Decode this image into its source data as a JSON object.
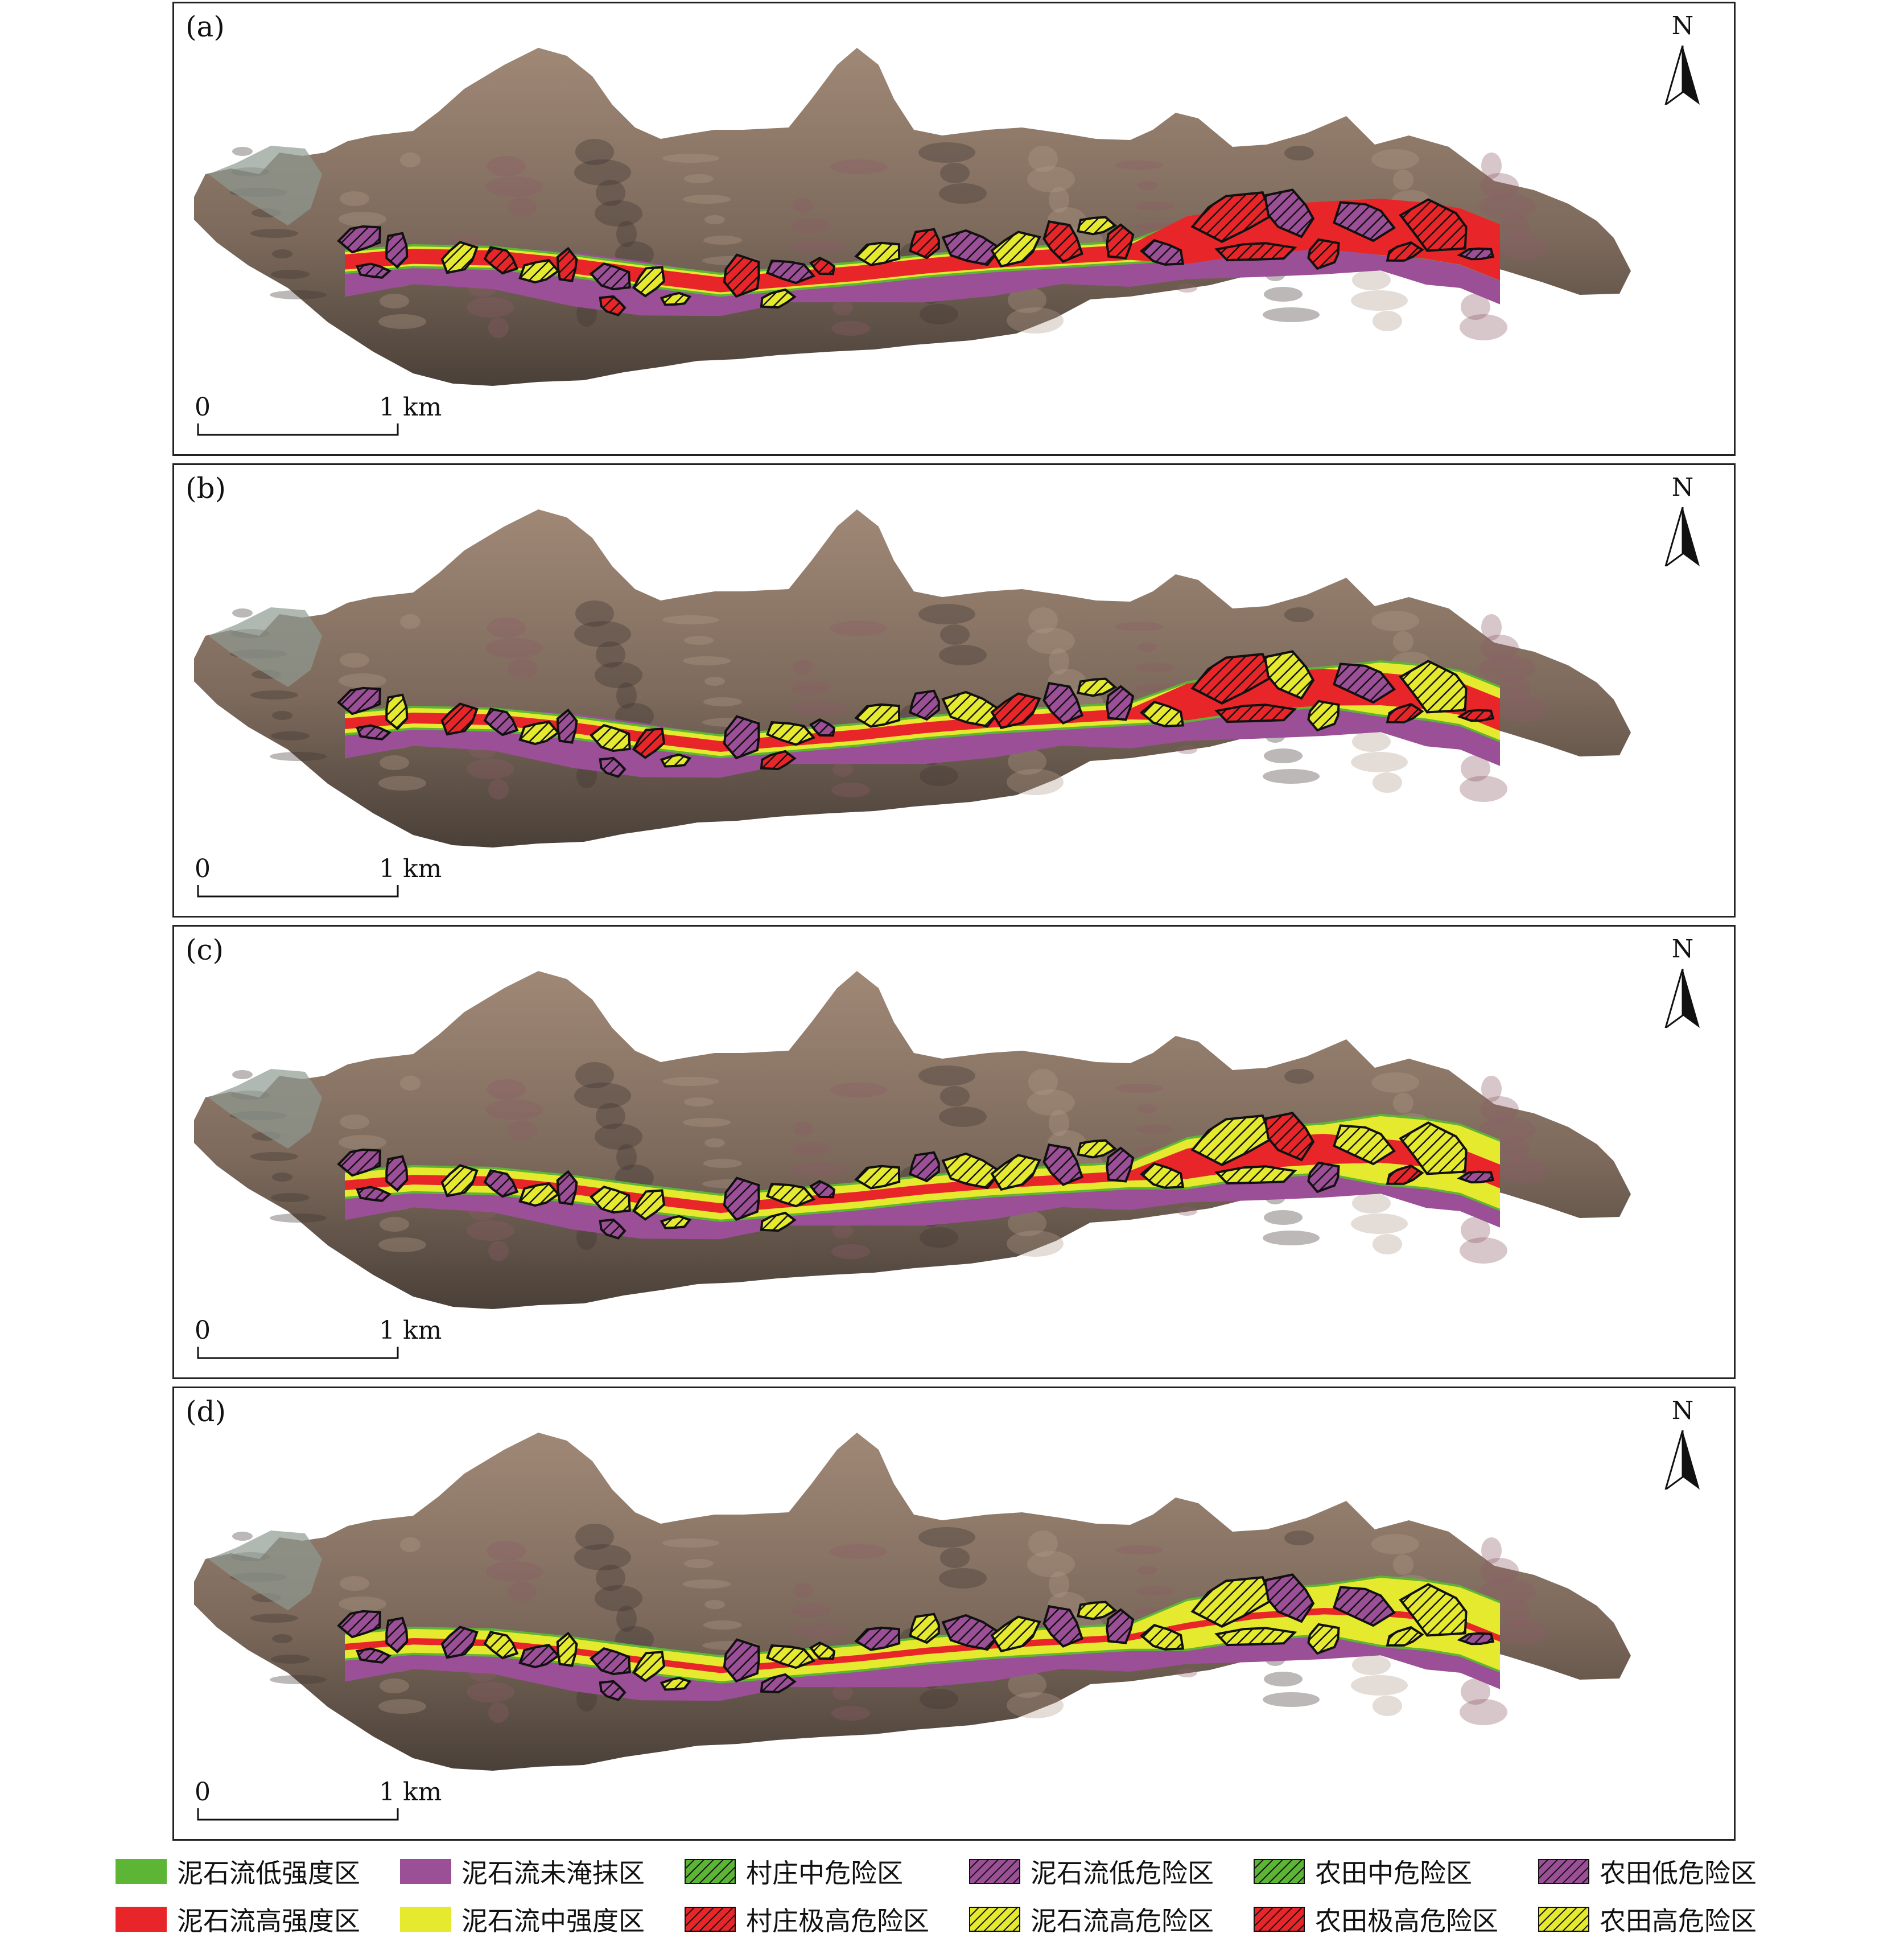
{
  "panels": [
    {
      "label": "(a)",
      "mode": "a"
    },
    {
      "label": "(b)",
      "mode": "b"
    },
    {
      "label": "(c)",
      "mode": "c"
    },
    {
      "label": "(d)",
      "mode": "d"
    }
  ],
  "north_label": "N",
  "scale": {
    "start": "0",
    "end": "1 km"
  },
  "colors": {
    "low_intensity": "#5DB536",
    "high_intensity": "#E8262A",
    "not_inundated": "#9B4F96",
    "medium_intensity": "#E6EA2E",
    "terrain_dark": "#4a4038",
    "terrain_mid": "#7d6a5c",
    "terrain_light": "#a08876"
  },
  "legend": [
    {
      "label": "泥石流低强度区",
      "swatch": "solid",
      "color": "#5DB536",
      "icon": "solid-green-swatch"
    },
    {
      "label": "泥石流未淹抹区",
      "swatch": "solid",
      "color": "#9B4F96",
      "icon": "solid-purple-swatch"
    },
    {
      "label": "村庄中危险区",
      "swatch": "hatch",
      "color": "#5DB536",
      "icon": "hatched-green-swatch"
    },
    {
      "label": "泥石流低危险区",
      "swatch": "hatch",
      "color": "#9B4F96",
      "icon": "hatched-purple-swatch"
    },
    {
      "label": "农田中危险区",
      "swatch": "hatch",
      "color": "#5DB536",
      "icon": "hatched-green-swatch"
    },
    {
      "label": "农田低危险区",
      "swatch": "hatch",
      "color": "#9B4F96",
      "icon": "hatched-purple-swatch"
    },
    {
      "label": "泥石流高强度区",
      "swatch": "solid",
      "color": "#E8262A",
      "icon": "solid-red-swatch"
    },
    {
      "label": "泥石流中强度区",
      "swatch": "solid",
      "color": "#E6EA2E",
      "icon": "solid-yellow-swatch"
    },
    {
      "label": "村庄极高危险区",
      "swatch": "hatch",
      "color": "#E8262A",
      "icon": "hatched-red-swatch"
    },
    {
      "label": "泥石流高危险区",
      "swatch": "hatch",
      "color": "#E6EA2E",
      "icon": "hatched-yellow-swatch"
    },
    {
      "label": "农田极高危险区",
      "swatch": "hatch",
      "color": "#E8262A",
      "icon": "hatched-red-swatch"
    },
    {
      "label": "农田高危险区",
      "swatch": "hatch",
      "color": "#E6EA2E",
      "icon": "hatched-yellow-swatch"
    }
  ]
}
